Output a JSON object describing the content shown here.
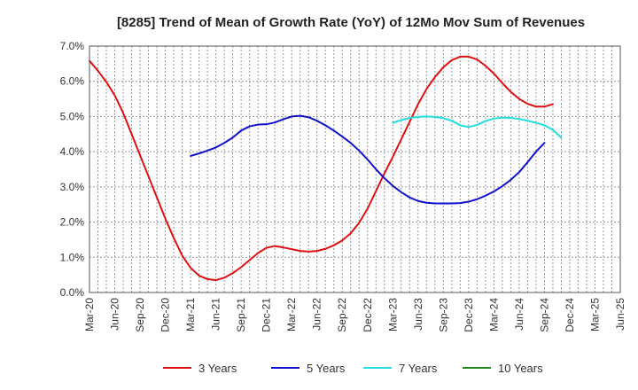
{
  "chart_data": {
    "type": "line",
    "title": "[8285]  Trend of Mean of Growth Rate (YoY) of 12Mo Mov Sum of Revenues",
    "xlabel": "",
    "ylabel": "",
    "ylim": [
      0,
      7
    ],
    "yticks": [
      0,
      1,
      2,
      3,
      4,
      5,
      6,
      7
    ],
    "ytick_labels": [
      "0.0%",
      "1.0%",
      "2.0%",
      "3.0%",
      "4.0%",
      "5.0%",
      "6.0%",
      "7.0%"
    ],
    "xtick_labels": [
      "Mar-20",
      "Jun-20",
      "Sep-20",
      "Dec-20",
      "Mar-21",
      "Jun-21",
      "Sep-21",
      "Dec-21",
      "Mar-22",
      "Jun-22",
      "Sep-22",
      "Dec-22",
      "Mar-23",
      "Jun-23",
      "Sep-23",
      "Dec-23",
      "Mar-24",
      "Jun-24",
      "Sep-24",
      "Dec-24",
      "Mar-25",
      "Jun-25"
    ],
    "x_months_total": 63,
    "grid": true,
    "legend_position": "bottom",
    "series": [
      {
        "name": "3 Years",
        "color": "#dd1111",
        "start_month": 0,
        "values": [
          6.58,
          6.3,
          5.98,
          5.6,
          5.1,
          4.5,
          3.9,
          3.3,
          2.7,
          2.1,
          1.55,
          1.05,
          0.7,
          0.48,
          0.38,
          0.35,
          0.42,
          0.55,
          0.72,
          0.92,
          1.12,
          1.27,
          1.32,
          1.28,
          1.23,
          1.18,
          1.16,
          1.18,
          1.24,
          1.34,
          1.48,
          1.68,
          1.98,
          2.38,
          2.88,
          3.38,
          3.85,
          4.35,
          4.85,
          5.35,
          5.78,
          6.12,
          6.4,
          6.6,
          6.7,
          6.7,
          6.62,
          6.44,
          6.22,
          5.95,
          5.7,
          5.5,
          5.36,
          5.28,
          5.28,
          5.35
        ]
      },
      {
        "name": "5 Years",
        "color": "#1111cc",
        "start_month": 12,
        "values": [
          3.88,
          3.95,
          4.03,
          4.12,
          4.25,
          4.4,
          4.6,
          4.72,
          4.77,
          4.78,
          4.83,
          4.92,
          5.0,
          5.02,
          4.98,
          4.88,
          4.75,
          4.6,
          4.43,
          4.25,
          4.03,
          3.78,
          3.5,
          3.25,
          3.03,
          2.85,
          2.7,
          2.6,
          2.55,
          2.53,
          2.53,
          2.53,
          2.54,
          2.58,
          2.65,
          2.75,
          2.87,
          3.02,
          3.2,
          3.42,
          3.7,
          4.0,
          4.25
        ]
      },
      {
        "name": "7 Years",
        "color": "#22dddd",
        "start_month": 36,
        "values": [
          4.82,
          4.9,
          4.96,
          4.99,
          5.0,
          4.99,
          4.95,
          4.88,
          4.75,
          4.7,
          4.76,
          4.87,
          4.94,
          4.97,
          4.96,
          4.93,
          4.88,
          4.82,
          4.75,
          4.62,
          4.4
        ]
      },
      {
        "name": "10 Years",
        "color": "#228822",
        "start_month": 0,
        "values": []
      }
    ]
  }
}
